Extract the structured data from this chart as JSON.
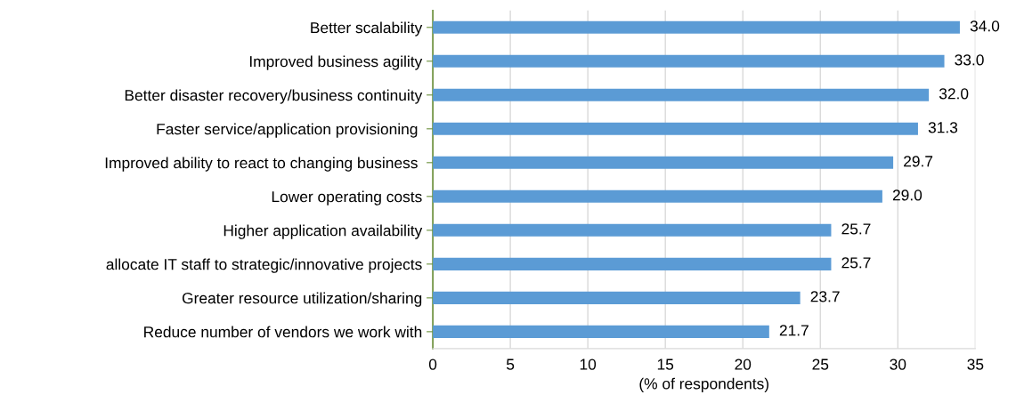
{
  "chart_data": {
    "type": "bar",
    "orientation": "horizontal",
    "categories": [
      "Better scalability",
      "Improved business agility",
      "Better disaster recovery/business continuity",
      "Faster service/application provisioning ",
      "Improved ability to react to changing business ",
      "Lower operating costs",
      "Higher application availability",
      "allocate IT staff to strategic/innovative projects",
      "Greater resource utilization/sharing",
      "Reduce number of vendors we work with"
    ],
    "values": [
      34.0,
      33.0,
      32.0,
      31.3,
      29.7,
      29.0,
      25.7,
      25.7,
      23.7,
      21.7
    ],
    "value_labels": [
      "34.0",
      "33.0",
      "32.0",
      "31.3",
      "29.7",
      "29.0",
      "25.7",
      "25.7",
      "23.7",
      "21.7"
    ],
    "color": "#5b9bd5",
    "xlabel": "(% of respondents)",
    "xlim": [
      0,
      35
    ],
    "xticks": [
      0,
      5,
      10,
      15,
      20,
      25,
      30,
      35
    ],
    "grid": "x",
    "legend": false
  }
}
